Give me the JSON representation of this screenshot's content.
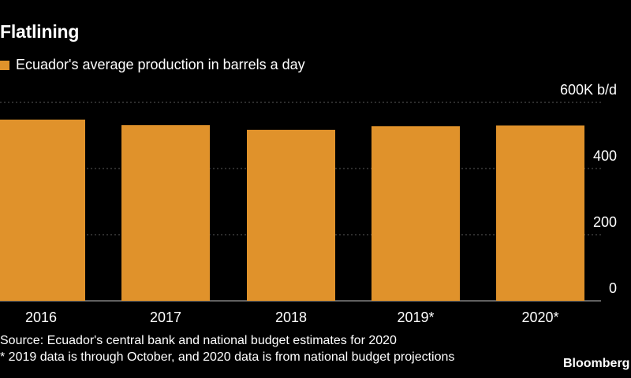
{
  "title": "Flatlining",
  "chart_data": {
    "type": "bar",
    "title": "Flatlining",
    "categories": [
      "2016",
      "2017",
      "2018",
      "2019*",
      "2020*"
    ],
    "series": [
      {
        "name": "Ecuador's average production in barrels a day",
        "values": [
          548,
          531,
          517,
          528,
          530
        ]
      }
    ],
    "ylim": [
      0,
      600
    ],
    "yticks": [
      0,
      200,
      400,
      600
    ],
    "ytick_labels": [
      "0",
      "200",
      "400",
      "600K b/d"
    ],
    "xlabel": "",
    "ylabel": "",
    "grid": true,
    "legend_position": "top-left",
    "bar_color": "#E0922B"
  },
  "footer": {
    "source": "Source: Ecuador's central bank and national budget estimates for 2020",
    "note": "* 2019 data is through October, and 2020 data is from national budget projections",
    "logo": "Bloomberg"
  }
}
